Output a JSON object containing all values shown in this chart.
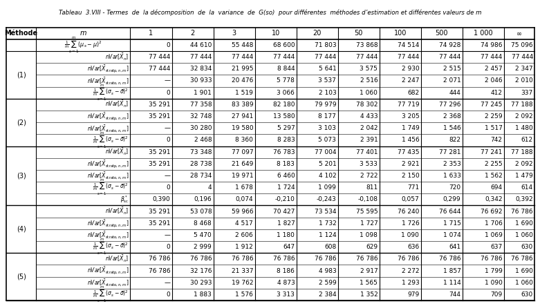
{
  "title": "Tableau  3.VIII - Termes  de  la décomposition  de  la  variance  de  G(so)  pour différentes  méthodes d’estimation et différentes valeurs de m",
  "col_headers": [
    "Méthode",
    "m",
    "1",
    "2",
    "3",
    "10",
    "20",
    "50",
    "100",
    "500",
    "1 000",
    "∞"
  ],
  "row0_label": "\\frac{1}{m}\\sum_{s=1}^{m}(\\mu_s - \\mu)^2",
  "row0_values": [
    "0",
    "44 610",
    "55 448",
    "68 600",
    "71 803",
    "73 868",
    "74 514",
    "74 928",
    "74 986",
    "75 096"
  ],
  "sections": [
    {
      "method": "(1)",
      "rows": [
        {
          "label": "nVar[\\bar{X}_n]",
          "values": [
            "77 444",
            "77 444",
            "77 444",
            "77 444",
            "77 444",
            "77 444",
            "77 444",
            "77 444",
            "77 444",
            "77 444"
          ]
        },
        {
          "label": "nVar[\\bar{X}_{\\mathrm{stratp},n,m}]",
          "values": [
            "77 444",
            "32 834",
            "21 995",
            "8 844",
            "5 641",
            "3 575",
            "2 930",
            "2 515",
            "2 457",
            "2 347"
          ]
        },
        {
          "label": "nVar[\\bar{X}_{\\mathrm{strato},n,m}]",
          "values": [
            "—",
            "30 933",
            "20 476",
            "5 778",
            "3 537",
            "2 516",
            "2 247",
            "2 071",
            "2 046",
            "2 010"
          ]
        },
        {
          "label": "\\frac{1}{m}\\sum_{s=1}^{m}(\\sigma_s - \\bar{\\sigma})^2",
          "values": [
            "0",
            "1 901",
            "1 519",
            "3 066",
            "2 103",
            "1 060",
            "682",
            "444",
            "412",
            "337"
          ]
        }
      ],
      "has_beta": false
    },
    {
      "method": "(2)",
      "rows": [
        {
          "label": "nVar[\\bar{X}_n]",
          "values": [
            "35 291",
            "77 358",
            "83 389",
            "82 180",
            "79 979",
            "78 302",
            "77 719",
            "77 296",
            "77 245",
            "77 188"
          ]
        },
        {
          "label": "nVar[\\bar{X}_{\\mathrm{stratp},n,m}]",
          "values": [
            "35 291",
            "32 748",
            "27 941",
            "13 580",
            "8 177",
            "4 433",
            "3 205",
            "2 368",
            "2 259",
            "2 092"
          ]
        },
        {
          "label": "nVar[\\bar{X}_{\\mathrm{strato},n,m}]",
          "values": [
            "—",
            "30 280",
            "19 580",
            "5 297",
            "3 103",
            "2 042",
            "1 749",
            "1 546",
            "1 517",
            "1 480"
          ]
        },
        {
          "label": "\\frac{1}{m}\\sum_{s=1}^{m}(\\sigma_s - \\bar{\\sigma})^2",
          "values": [
            "0",
            "2 468",
            "8 360",
            "8 283",
            "5 073",
            "2 391",
            "1 456",
            "822",
            "742",
            "612"
          ]
        }
      ],
      "has_beta": false
    },
    {
      "method": "(3)",
      "rows": [
        {
          "label": "nVar[\\bar{X}_n]",
          "values": [
            "35 291",
            "73 348",
            "77 097",
            "76 783",
            "77 004",
            "77 401",
            "77 435",
            "77 281",
            "77 241",
            "77 188"
          ]
        },
        {
          "label": "nVar[\\bar{X}_{\\mathrm{stratp},n,m}]",
          "values": [
            "35 291",
            "28 738",
            "21 649",
            "8 183",
            "5 201",
            "3 533",
            "2 921",
            "2 353",
            "2 255",
            "2 092"
          ]
        },
        {
          "label": "nVar[\\bar{X}_{\\mathrm{strato},n,m}]",
          "values": [
            "—",
            "28 734",
            "19 971",
            "6 460",
            "4 102",
            "2 722",
            "2 150",
            "1 633",
            "1 562",
            "1 479"
          ]
        },
        {
          "label": "\\frac{1}{m}\\sum_{s=1}^{m}(\\sigma_s - \\bar{\\sigma})^2",
          "values": [
            "0",
            "4",
            "1 678",
            "1 724",
            "1 099",
            "811",
            "771",
            "720",
            "694",
            "614"
          ]
        },
        {
          "label": "\\beta^*_{\\mathrm{sc}}",
          "values": [
            "0,390",
            "0,196",
            "0,074",
            "-0,210",
            "-0,243",
            "-0,108",
            "0,057",
            "0,299",
            "0,342",
            "0,392"
          ]
        }
      ],
      "has_beta": true
    },
    {
      "method": "(4)",
      "rows": [
        {
          "label": "nVar[\\bar{X}_n]",
          "values": [
            "35 291",
            "53 078",
            "59 966",
            "70 427",
            "73 534",
            "75 595",
            "76 240",
            "76 644",
            "76 692",
            "76 786"
          ]
        },
        {
          "label": "nVar[\\bar{X}_{\\mathrm{stratp},n,m}]",
          "values": [
            "35 291",
            "8 468",
            "4 517",
            "1 827",
            "1 732",
            "1 727",
            "1 726",
            "1 715",
            "1 706",
            "1 690"
          ]
        },
        {
          "label": "nVar[\\bar{X}_{\\mathrm{strato},n,m}]",
          "values": [
            "—",
            "5 470",
            "2 606",
            "1 180",
            "1 124",
            "1 098",
            "1 090",
            "1 074",
            "1 069",
            "1 060"
          ]
        },
        {
          "label": "\\frac{1}{m}\\sum_{s=1}^{m}(\\sigma_s - \\bar{\\sigma})^2",
          "values": [
            "0",
            "2 999",
            "1 912",
            "647",
            "608",
            "629",
            "636",
            "641",
            "637",
            "630"
          ]
        }
      ],
      "has_beta": false
    },
    {
      "method": "(5)",
      "rows": [
        {
          "label": "nVar[\\bar{X}_n]",
          "values": [
            "76 786",
            "76 786",
            "76 786",
            "76 786",
            "76 786",
            "76 786",
            "76 786",
            "76 786",
            "76 786",
            "76 786"
          ]
        },
        {
          "label": "nVar[\\bar{X}_{\\mathrm{stratp},n,m}]",
          "values": [
            "76 786",
            "32 176",
            "21 337",
            "8 186",
            "4 983",
            "2 917",
            "2 272",
            "1 857",
            "1 799",
            "1 690"
          ]
        },
        {
          "label": "nVar[\\bar{X}_{\\mathrm{strato},n,m}]",
          "values": [
            "—",
            "30 293",
            "19 762",
            "4 873",
            "2 599",
            "1 565",
            "1 293",
            "1 114",
            "1 090",
            "1 060"
          ]
        },
        {
          "label": "\\frac{1}{m}\\sum_{s=1}^{m}(\\sigma_s - \\bar{\\sigma})^2",
          "values": [
            "0",
            "1 883",
            "1 576",
            "3 313",
            "2 384",
            "1 352",
            "979",
            "744",
            "709",
            "630"
          ]
        }
      ],
      "has_beta": false
    }
  ]
}
